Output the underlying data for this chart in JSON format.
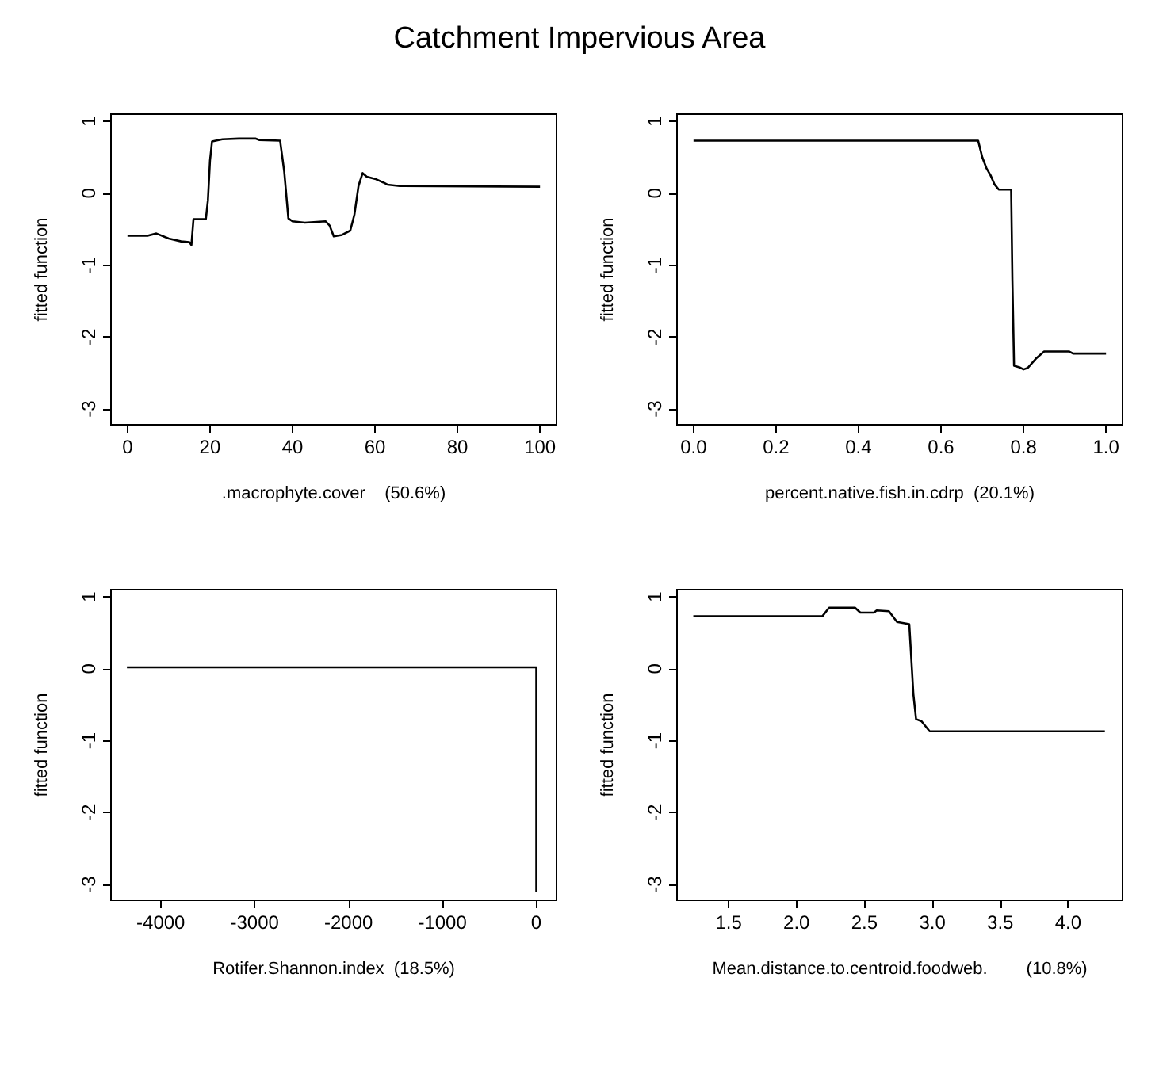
{
  "chart_data": [
    {
      "type": "line",
      "title": "Catchment Impervious Area",
      "xlabel": ".macrophyte.cover    (50.6%)",
      "ylabel": "fitted function",
      "color": "#000000",
      "x": [
        0,
        5,
        7,
        10,
        13,
        15,
        15.5,
        16,
        19,
        19.5,
        20,
        20.5,
        23,
        27,
        31,
        32,
        37,
        38,
        39,
        40,
        43,
        48,
        49,
        50,
        52,
        54,
        55,
        56,
        57,
        58,
        60,
        62,
        63,
        66,
        100
      ],
      "values": [
        -0.59,
        -0.59,
        -0.56,
        -0.63,
        -0.67,
        -0.68,
        -0.72,
        -0.36,
        -0.36,
        -0.1,
        0.45,
        0.72,
        0.75,
        0.76,
        0.76,
        0.74,
        0.73,
        0.3,
        -0.35,
        -0.39,
        -0.41,
        -0.39,
        -0.45,
        -0.6,
        -0.58,
        -0.52,
        -0.3,
        0.1,
        0.28,
        0.23,
        0.2,
        0.15,
        0.12,
        0.1,
        0.09
      ],
      "xlim": [
        -4,
        104
      ],
      "xticks": [
        0,
        20,
        40,
        60,
        80,
        100
      ],
      "ylim": [
        -3.22,
        1.1
      ],
      "yticks": [
        -3,
        -2,
        -1,
        0,
        1
      ]
    },
    {
      "type": "line",
      "xlabel": "percent.native.fish.in.cdrp  (20.1%)",
      "ylabel": "fitted function",
      "color": "#000000",
      "x": [
        0,
        0.69,
        0.7,
        0.71,
        0.72,
        0.73,
        0.74,
        0.77,
        0.773,
        0.777,
        0.79,
        0.8,
        0.81,
        0.83,
        0.85,
        0.91,
        0.92,
        1.0
      ],
      "values": [
        0.73,
        0.73,
        0.5,
        0.35,
        0.25,
        0.12,
        0.05,
        0.05,
        -1.2,
        -2.4,
        -2.42,
        -2.45,
        -2.43,
        -2.3,
        -2.2,
        -2.2,
        -2.23,
        -2.23
      ],
      "xlim": [
        -0.04,
        1.04
      ],
      "xticks": [
        {
          "value": 0,
          "label": "0.0"
        },
        0.2,
        0.4,
        0.6,
        0.8,
        {
          "value": 1,
          "label": "1.0"
        }
      ],
      "ylim": [
        -3.22,
        1.1
      ],
      "yticks": [
        -3,
        -2,
        -1,
        0,
        1
      ]
    },
    {
      "type": "line",
      "xlabel": "Rotifer.Shannon.index  (18.5%)",
      "ylabel": "fitted function",
      "color": "#000000",
      "x": [
        -4360,
        0,
        0,
        0
      ],
      "values": [
        0.02,
        0.02,
        -1.5,
        -3.1
      ],
      "xlim": [
        -4530,
        215
      ],
      "xticks": [
        -4000,
        -3000,
        -2000,
        -1000,
        0
      ],
      "ylim": [
        -3.22,
        1.1
      ],
      "yticks": [
        -3,
        -2,
        -1,
        0,
        1
      ]
    },
    {
      "type": "line",
      "xlabel": "Mean.distance.to.centroid.foodweb.        (10.8%)",
      "ylabel": "fitted function",
      "color": "#000000",
      "x": [
        1.24,
        2.19,
        2.24,
        2.43,
        2.47,
        2.57,
        2.59,
        2.68,
        2.74,
        2.83,
        2.84,
        2.86,
        2.88,
        2.92,
        2.98,
        4.27
      ],
      "values": [
        0.73,
        0.73,
        0.85,
        0.85,
        0.78,
        0.78,
        0.81,
        0.8,
        0.65,
        0.62,
        0.3,
        -0.35,
        -0.7,
        -0.73,
        -0.87,
        -0.87
      ],
      "xlim": [
        1.12,
        4.4
      ],
      "xticks": [
        1.5,
        {
          "value": 2,
          "label": "2.0"
        },
        2.5,
        {
          "value": 3,
          "label": "3.0"
        },
        3.5,
        {
          "value": 4,
          "label": "4.0"
        }
      ],
      "ylim": [
        -3.22,
        1.1
      ],
      "yticks": [
        -3,
        -2,
        -1,
        0,
        1
      ]
    }
  ]
}
